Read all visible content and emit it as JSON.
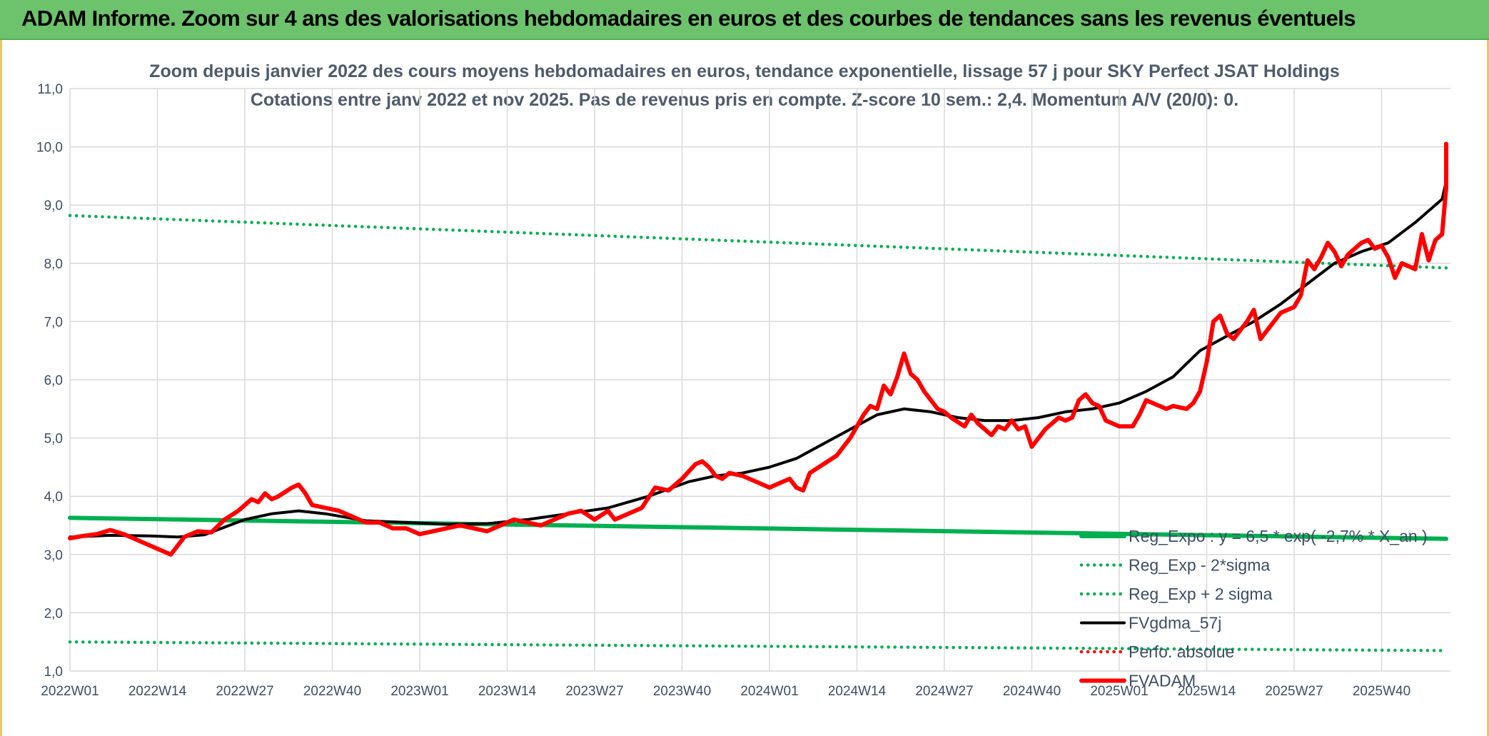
{
  "banner": {
    "title": "ADAM Informe. Zoom sur 4 ans des valorisations hebdomadaires en euros et des courbes de tendances sans les revenus éventuels"
  },
  "colors": {
    "banner": "#6cc36b",
    "reg_expo": "#00b050",
    "fvgdma": "#000000",
    "fvadam": "#ff0000",
    "perfo": "#ff0000",
    "grid": "#d9d9d9",
    "text": "#3d4e63"
  },
  "chart_data": {
    "type": "line",
    "title_line1": "Zoom depuis janvier 2022 des cours moyens hebdomadaires en euros, tendance exponentielle, lissage 57 j pour SKY Perfect JSAT Holdings",
    "title_line2": "Cotations entre janv 2022 et nov 2025. Pas de revenus pris en compte. Z-score 10 sem.: 2,4. Momentum A/V (20/0): 0.",
    "x_ticks": [
      "2022W01",
      "2022W14",
      "2022W27",
      "2022W40",
      "2023W01",
      "2023W14",
      "2023W27",
      "2023W40",
      "2024W01",
      "2024W14",
      "2024W27",
      "2024W40",
      "2025W01",
      "2025W14",
      "2025W27",
      "2025W40"
    ],
    "y_ticks": [
      "1,0",
      "2,0",
      "3,0",
      "4,0",
      "5,0",
      "6,0",
      "7,0",
      "8,0",
      "9,0",
      "10,0",
      "11,0"
    ],
    "ylim": [
      1,
      11
    ],
    "week_range": [
      0,
      207
    ],
    "grid": true,
    "legend_position": "bottom-right",
    "series": [
      {
        "name": "Reg_Expo : y = 6,5 * exp( -2,7% *  X_an )",
        "style": "solid-thick",
        "color": "#00b050",
        "points": [
          [
            0,
            3.63
          ],
          [
            207,
            3.27
          ]
        ]
      },
      {
        "name": "Reg_Exp - 2*sigma",
        "style": "dotted",
        "color": "#00b050",
        "points": [
          [
            0,
            1.5
          ],
          [
            207,
            1.35
          ]
        ]
      },
      {
        "name": "Reg_Exp + 2 sigma",
        "style": "dotted",
        "color": "#00b050",
        "points": [
          [
            0,
            8.82
          ],
          [
            207,
            7.92
          ]
        ]
      },
      {
        "name": "FVgdma_57j",
        "style": "solid",
        "color": "#000000",
        "points": [
          [
            0,
            3.3
          ],
          [
            6,
            3.33
          ],
          [
            12,
            3.32
          ],
          [
            16,
            3.3
          ],
          [
            20,
            3.34
          ],
          [
            26,
            3.6
          ],
          [
            30,
            3.7
          ],
          [
            34,
            3.75
          ],
          [
            38,
            3.7
          ],
          [
            44,
            3.58
          ],
          [
            50,
            3.55
          ],
          [
            56,
            3.52
          ],
          [
            62,
            3.53
          ],
          [
            68,
            3.6
          ],
          [
            74,
            3.7
          ],
          [
            80,
            3.8
          ],
          [
            86,
            4.0
          ],
          [
            92,
            4.25
          ],
          [
            96,
            4.35
          ],
          [
            100,
            4.4
          ],
          [
            104,
            4.5
          ],
          [
            108,
            4.65
          ],
          [
            112,
            4.9
          ],
          [
            116,
            5.15
          ],
          [
            120,
            5.4
          ],
          [
            124,
            5.5
          ],
          [
            128,
            5.45
          ],
          [
            132,
            5.35
          ],
          [
            136,
            5.3
          ],
          [
            140,
            5.3
          ],
          [
            144,
            5.35
          ],
          [
            148,
            5.45
          ],
          [
            152,
            5.5
          ],
          [
            156,
            5.6
          ],
          [
            160,
            5.8
          ],
          [
            164,
            6.05
          ],
          [
            168,
            6.5
          ],
          [
            172,
            6.75
          ],
          [
            176,
            7.0
          ],
          [
            180,
            7.3
          ],
          [
            184,
            7.65
          ],
          [
            188,
            8.0
          ],
          [
            192,
            8.2
          ],
          [
            196,
            8.35
          ],
          [
            200,
            8.7
          ],
          [
            204,
            9.1
          ],
          [
            207,
            9.4
          ]
        ]
      },
      {
        "name": "Perfo. absolue",
        "style": "dotted",
        "color": "#ff0000",
        "points": []
      },
      {
        "name": "FVADAM",
        "style": "solid-thick",
        "color": "#ff0000",
        "points": [
          [
            0,
            3.28
          ],
          [
            2,
            3.32
          ],
          [
            4,
            3.35
          ],
          [
            6,
            3.42
          ],
          [
            8,
            3.35
          ],
          [
            10,
            3.25
          ],
          [
            12,
            3.15
          ],
          [
            14,
            3.05
          ],
          [
            15,
            3.0
          ],
          [
            17,
            3.3
          ],
          [
            19,
            3.4
          ],
          [
            21,
            3.38
          ],
          [
            23,
            3.6
          ],
          [
            25,
            3.75
          ],
          [
            27,
            3.95
          ],
          [
            28,
            3.9
          ],
          [
            29,
            4.05
          ],
          [
            30,
            3.95
          ],
          [
            31,
            4.0
          ],
          [
            33,
            4.15
          ],
          [
            34,
            4.2
          ],
          [
            35,
            4.05
          ],
          [
            36,
            3.85
          ],
          [
            38,
            3.8
          ],
          [
            40,
            3.75
          ],
          [
            42,
            3.65
          ],
          [
            44,
            3.55
          ],
          [
            46,
            3.55
          ],
          [
            48,
            3.45
          ],
          [
            50,
            3.45
          ],
          [
            52,
            3.35
          ],
          [
            54,
            3.4
          ],
          [
            56,
            3.45
          ],
          [
            58,
            3.5
          ],
          [
            60,
            3.45
          ],
          [
            62,
            3.4
          ],
          [
            64,
            3.5
          ],
          [
            66,
            3.6
          ],
          [
            68,
            3.55
          ],
          [
            70,
            3.5
          ],
          [
            72,
            3.6
          ],
          [
            74,
            3.7
          ],
          [
            76,
            3.75
          ],
          [
            78,
            3.6
          ],
          [
            80,
            3.75
          ],
          [
            81,
            3.6
          ],
          [
            83,
            3.7
          ],
          [
            85,
            3.8
          ],
          [
            87,
            4.15
          ],
          [
            89,
            4.1
          ],
          [
            91,
            4.3
          ],
          [
            93,
            4.55
          ],
          [
            94,
            4.6
          ],
          [
            95,
            4.5
          ],
          [
            96,
            4.35
          ],
          [
            97,
            4.3
          ],
          [
            98,
            4.4
          ],
          [
            100,
            4.35
          ],
          [
            102,
            4.25
          ],
          [
            104,
            4.15
          ],
          [
            106,
            4.25
          ],
          [
            107,
            4.3
          ],
          [
            108,
            4.15
          ],
          [
            109,
            4.1
          ],
          [
            110,
            4.4
          ],
          [
            112,
            4.55
          ],
          [
            114,
            4.7
          ],
          [
            116,
            5.0
          ],
          [
            118,
            5.4
          ],
          [
            119,
            5.55
          ],
          [
            120,
            5.5
          ],
          [
            121,
            5.9
          ],
          [
            122,
            5.75
          ],
          [
            123,
            6.05
          ],
          [
            124,
            6.45
          ],
          [
            125,
            6.1
          ],
          [
            126,
            6.0
          ],
          [
            127,
            5.8
          ],
          [
            129,
            5.5
          ],
          [
            130,
            5.45
          ],
          [
            131,
            5.35
          ],
          [
            133,
            5.2
          ],
          [
            134,
            5.4
          ],
          [
            135,
            5.25
          ],
          [
            137,
            5.05
          ],
          [
            138,
            5.2
          ],
          [
            139,
            5.15
          ],
          [
            140,
            5.3
          ],
          [
            141,
            5.15
          ],
          [
            142,
            5.2
          ],
          [
            143,
            4.85
          ],
          [
            145,
            5.15
          ],
          [
            147,
            5.35
          ],
          [
            148,
            5.3
          ],
          [
            149,
            5.35
          ],
          [
            150,
            5.65
          ],
          [
            151,
            5.75
          ],
          [
            152,
            5.6
          ],
          [
            153,
            5.55
          ],
          [
            154,
            5.3
          ],
          [
            156,
            5.2
          ],
          [
            158,
            5.2
          ],
          [
            159,
            5.4
          ],
          [
            160,
            5.65
          ],
          [
            162,
            5.55
          ],
          [
            163,
            5.5
          ],
          [
            164,
            5.55
          ],
          [
            166,
            5.5
          ],
          [
            167,
            5.6
          ],
          [
            168,
            5.8
          ],
          [
            169,
            6.3
          ],
          [
            170,
            7.0
          ],
          [
            171,
            7.1
          ],
          [
            172,
            6.8
          ],
          [
            173,
            6.7
          ],
          [
            174,
            6.85
          ],
          [
            175,
            7.0
          ],
          [
            176,
            7.2
          ],
          [
            177,
            6.7
          ],
          [
            178,
            6.85
          ],
          [
            180,
            7.15
          ],
          [
            181,
            7.2
          ],
          [
            182,
            7.25
          ],
          [
            183,
            7.45
          ],
          [
            184,
            8.05
          ],
          [
            185,
            7.9
          ],
          [
            186,
            8.1
          ],
          [
            187,
            8.35
          ],
          [
            188,
            8.2
          ],
          [
            189,
            7.95
          ],
          [
            190,
            8.15
          ],
          [
            191,
            8.25
          ],
          [
            192,
            8.35
          ],
          [
            193,
            8.4
          ],
          [
            194,
            8.25
          ],
          [
            195,
            8.3
          ],
          [
            196,
            8.1
          ],
          [
            197,
            7.75
          ],
          [
            198,
            8.0
          ],
          [
            199,
            7.95
          ],
          [
            200,
            7.9
          ],
          [
            201,
            8.5
          ],
          [
            202,
            8.05
          ],
          [
            203,
            8.4
          ],
          [
            204,
            8.5
          ],
          [
            205,
            9.3
          ],
          [
            206,
            9.6
          ],
          [
            207,
            10.05
          ]
        ]
      }
    ]
  }
}
